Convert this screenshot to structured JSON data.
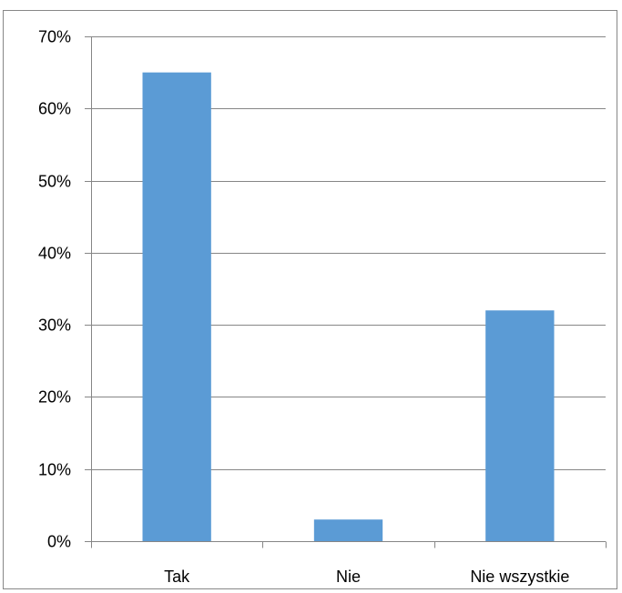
{
  "chart_data": {
    "type": "bar",
    "categories": [
      "Tak",
      "Nie",
      "Nie wszystkie"
    ],
    "values": [
      65,
      3,
      32
    ],
    "ylim": [
      0,
      70
    ],
    "ytick_step": 10,
    "ytick_labels": [
      "0%",
      "10%",
      "20%",
      "30%",
      "40%",
      "50%",
      "60%",
      "70%"
    ],
    "grid": "horizontal",
    "legend": "none",
    "colors": {
      "bar": "#5B9BD5",
      "grid": "#868686",
      "axis": "#868686",
      "text": "#000000"
    }
  }
}
